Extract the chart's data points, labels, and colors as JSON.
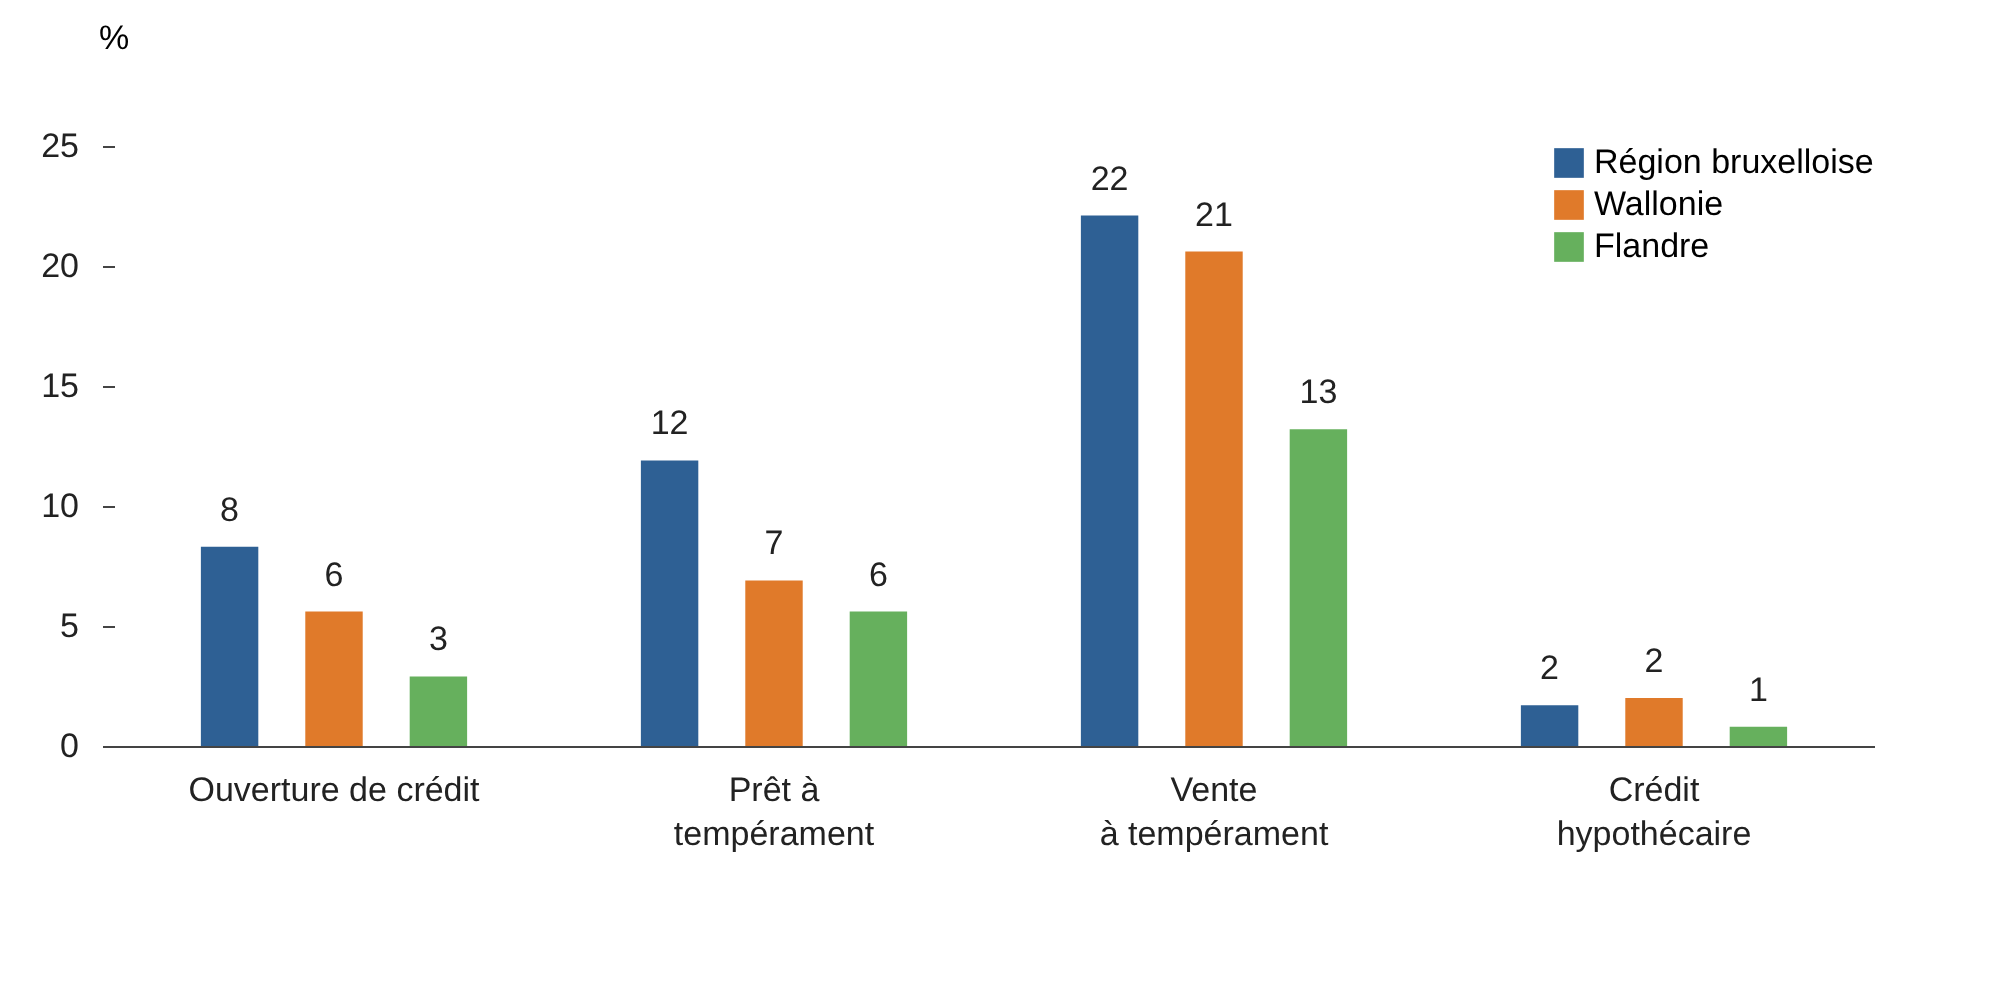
{
  "chart_data": {
    "type": "bar",
    "ylabel": "%",
    "categories": [
      "Ouverture de crédit",
      "Prêt à\ntempérament",
      "Vente\nà tempérament",
      "Crédit\nhypothécaire"
    ],
    "series": [
      {
        "name": "Région bruxelloise",
        "color": "#2e6094",
        "values": [
          8.3,
          11.9,
          22.1,
          1.7
        ],
        "value_labels": [
          "8",
          "12",
          "22",
          "2"
        ]
      },
      {
        "name": "Wallonie",
        "color": "#e07a2a",
        "values": [
          5.6,
          6.9,
          20.6,
          2.0
        ],
        "value_labels": [
          "6",
          "7",
          "21",
          "2"
        ]
      },
      {
        "name": "Flandre",
        "color": "#66b05d",
        "values": [
          2.9,
          5.6,
          13.2,
          0.8
        ],
        "value_labels": [
          "3",
          "6",
          "13",
          "1"
        ]
      }
    ],
    "ylim": [
      0,
      25
    ],
    "yticks": [
      0,
      5,
      10,
      15,
      20,
      25
    ],
    "grid": false,
    "legend": "top right"
  }
}
